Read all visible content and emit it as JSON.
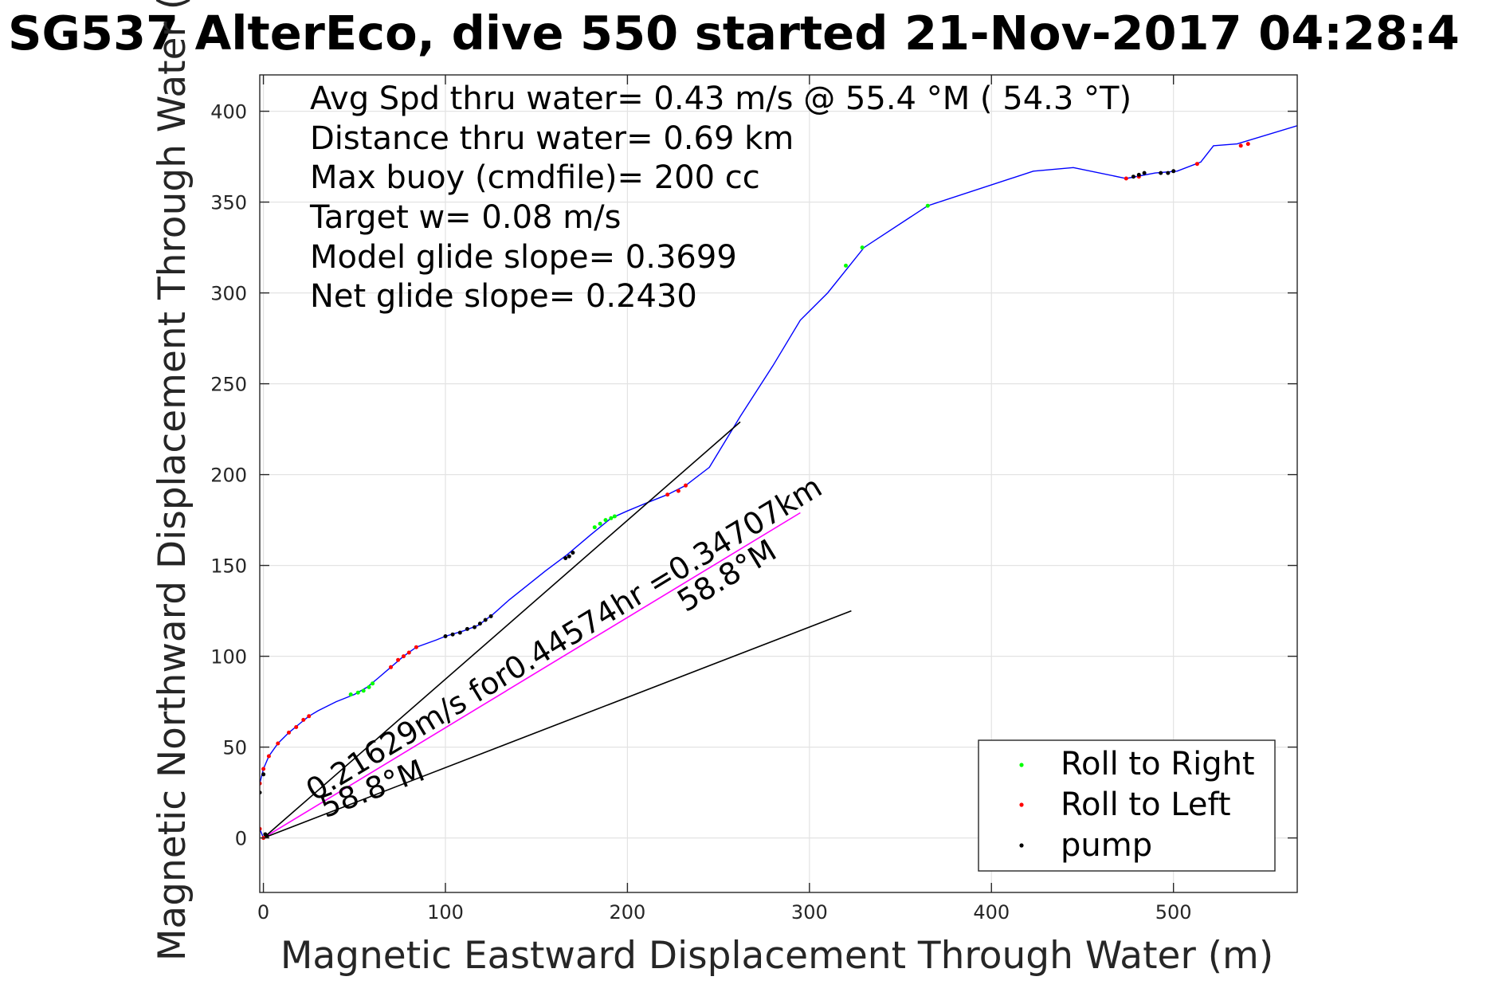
{
  "chart_data": {
    "type": "line",
    "title": "SG537 AlterEco, dive 550 started 21-Nov-2017 04:28:4",
    "xlabel": "Magnetic Eastward Displacement Through Water (m)",
    "ylabel": "Magnetic Northward Displacement Through Water (",
    "xlim": [
      -2,
      568
    ],
    "ylim": [
      -30,
      420
    ],
    "xticks": [
      0,
      100,
      200,
      300,
      400,
      500
    ],
    "yticks": [
      0,
      50,
      100,
      150,
      200,
      250,
      300,
      350,
      400
    ],
    "grid": true,
    "legend_position": "bottom-right",
    "stats": [
      "Avg Spd thru water=  0.43 m/s @  55.4 °M ( 54.3 °T)",
      "Distance thru water=  0.69 km",
      "Max buoy (cmdfile)= 200 cc",
      "Target w= 0.08 m/s",
      "Model glide slope= 0.3699",
      "Net glide slope= 0.2430"
    ],
    "annotations": {
      "current_label": "0.21629m/s for0.44574hr =0.34707km",
      "heading_label_mid": "58.8°M",
      "heading_label_origin": "58.8°M"
    },
    "legend": [
      {
        "label": "Roll to Right",
        "color": "#00ff00"
      },
      {
        "label": "Roll to Left",
        "color": "#ff0000"
      },
      {
        "label": "pump",
        "color": "#000000"
      }
    ],
    "series": [
      {
        "role": "track",
        "color": "#0000ff",
        "points": [
          [
            0,
            0
          ],
          [
            -2,
            5
          ],
          [
            -3,
            12
          ],
          [
            -3,
            20
          ],
          [
            -2,
            30
          ],
          [
            0,
            38
          ],
          [
            3,
            45
          ],
          [
            8,
            52
          ],
          [
            14,
            58
          ],
          [
            20,
            63
          ],
          [
            25,
            67
          ],
          [
            30,
            70
          ],
          [
            40,
            75
          ],
          [
            50,
            79
          ],
          [
            57,
            83
          ],
          [
            63,
            88
          ],
          [
            70,
            94
          ],
          [
            77,
            100
          ],
          [
            84,
            105
          ],
          [
            95,
            109
          ],
          [
            100,
            111
          ],
          [
            110,
            114
          ],
          [
            118,
            117
          ],
          [
            126,
            123
          ],
          [
            135,
            131
          ],
          [
            145,
            139
          ],
          [
            155,
            147
          ],
          [
            167,
            156
          ],
          [
            180,
            167
          ],
          [
            191,
            176
          ],
          [
            200,
            180
          ],
          [
            212,
            185
          ],
          [
            222,
            189
          ],
          [
            232,
            194
          ],
          [
            245,
            204
          ],
          [
            262,
            232
          ],
          [
            280,
            260
          ],
          [
            295,
            285
          ],
          [
            310,
            300
          ],
          [
            330,
            325
          ],
          [
            365,
            348
          ],
          [
            423,
            367
          ],
          [
            445,
            369
          ],
          [
            474,
            363
          ],
          [
            490,
            366
          ],
          [
            502,
            367
          ],
          [
            515,
            372
          ],
          [
            522,
            381
          ],
          [
            535,
            382
          ],
          [
            568,
            392
          ]
        ]
      },
      {
        "role": "drift",
        "color": "#ff00ff",
        "points": [
          [
            0,
            0
          ],
          [
            295,
            179
          ]
        ]
      },
      {
        "role": "model-heading-line",
        "color": "#000000",
        "points": [
          [
            0,
            0
          ],
          [
            262,
            229
          ]
        ]
      },
      {
        "role": "net-heading-line",
        "color": "#000000",
        "points": [
          [
            0,
            0
          ],
          [
            323,
            125
          ]
        ]
      },
      {
        "name": "Roll to Right",
        "color": "#00ff00",
        "points": [
          [
            48,
            79
          ],
          [
            52,
            80
          ],
          [
            55,
            81
          ],
          [
            58,
            83
          ],
          [
            60,
            85
          ],
          [
            182,
            171
          ],
          [
            185,
            173
          ],
          [
            188,
            175
          ],
          [
            191,
            176
          ],
          [
            193,
            177
          ],
          [
            320,
            315
          ],
          [
            329,
            325
          ],
          [
            365,
            348
          ]
        ]
      },
      {
        "name": "Roll to Left",
        "color": "#ff0000",
        "points": [
          [
            0,
            0
          ],
          [
            -2,
            5
          ],
          [
            -3,
            12
          ],
          [
            -3,
            20
          ],
          [
            -2,
            30
          ],
          [
            0,
            38
          ],
          [
            3,
            45
          ],
          [
            8,
            52
          ],
          [
            14,
            58
          ],
          [
            18,
            61
          ],
          [
            22,
            65
          ],
          [
            25,
            67
          ],
          [
            70,
            94
          ],
          [
            74,
            98
          ],
          [
            77,
            100
          ],
          [
            80,
            102
          ],
          [
            84,
            105
          ],
          [
            222,
            189
          ],
          [
            228,
            191
          ],
          [
            232,
            194
          ],
          [
            474,
            363
          ],
          [
            481,
            364
          ],
          [
            513,
            371
          ],
          [
            537,
            381
          ],
          [
            541,
            382
          ]
        ]
      },
      {
        "name": "pump",
        "color": "#000000",
        "points": [
          [
            -3,
            15
          ],
          [
            -2,
            25
          ],
          [
            0,
            35
          ],
          [
            100,
            111
          ],
          [
            104,
            112
          ],
          [
            108,
            113
          ],
          [
            112,
            115
          ],
          [
            116,
            116
          ],
          [
            119,
            118
          ],
          [
            122,
            120
          ],
          [
            125,
            122
          ],
          [
            166,
            154
          ],
          [
            168,
            155
          ],
          [
            170,
            157
          ],
          [
            478,
            364
          ],
          [
            481,
            365
          ],
          [
            484,
            366
          ],
          [
            493,
            366
          ],
          [
            497,
            366
          ],
          [
            500,
            367
          ],
          [
            1,
            2
          ],
          [
            2,
            1
          ]
        ]
      }
    ]
  }
}
